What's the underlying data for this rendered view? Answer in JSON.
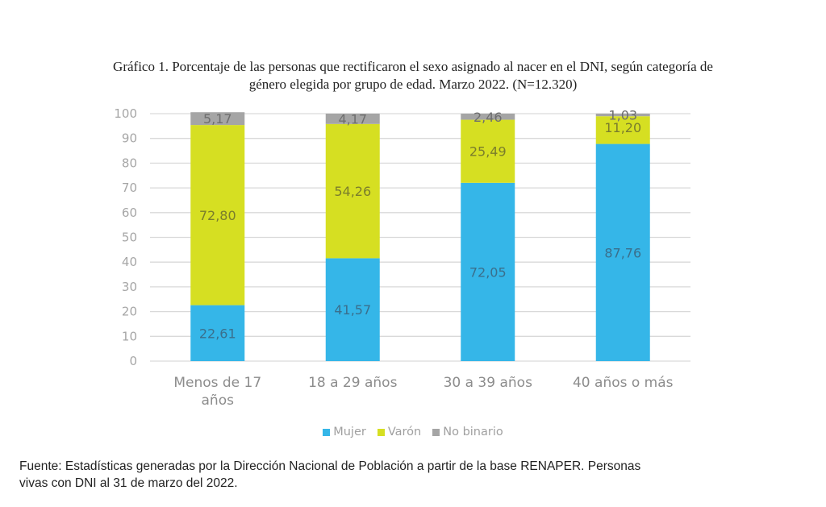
{
  "chart_data": {
    "type": "bar",
    "stacked": true,
    "title_line1": "Gráfico 1. Porcentaje de las personas que rectificaron el sexo asignado al nacer en el DNI, según categoría de",
    "title_line2": "género elegida por grupo de edad. Marzo 2022. (N=12.320)",
    "categories": [
      [
        "Menos de 17",
        "años"
      ],
      [
        "18 a 29 años"
      ],
      [
        "30 a 39 años"
      ],
      [
        "40 años o más"
      ]
    ],
    "series": [
      {
        "name": "Mujer",
        "color": "#35b6e8",
        "label_color": "#3a6f8c",
        "values": [
          22.61,
          41.57,
          72.05,
          87.76
        ],
        "labels": [
          "22,61",
          "41,57",
          "72,05",
          "87,76"
        ]
      },
      {
        "name": "Varón",
        "color": "#d6df22",
        "label_color": "#7a7d2c",
        "values": [
          72.8,
          54.26,
          25.49,
          11.2
        ],
        "labels": [
          "72,80",
          "54,26",
          "25,49",
          "11,20"
        ]
      },
      {
        "name": "No binario",
        "color": "#a5a5a5",
        "label_color": "#6e6e6e",
        "values": [
          5.17,
          4.17,
          2.46,
          1.03
        ],
        "labels": [
          "5,17",
          "4,17",
          "2,46",
          "1,03"
        ]
      }
    ],
    "ylim": [
      0,
      100
    ],
    "yticks": [
      0,
      10,
      20,
      30,
      40,
      50,
      60,
      70,
      80,
      90,
      100
    ],
    "grid": true,
    "gridColor": "#d9d9d9",
    "tickColor": "#a6a6a6",
    "legend_position": "bottom",
    "xlabel": "",
    "ylabel": ""
  },
  "source": {
    "line1": "Fuente: Estadísticas generadas por la Dirección Nacional de Población a partir de la base RENAPER. Personas",
    "line2": "vivas con DNI al 31 de marzo del 2022."
  }
}
